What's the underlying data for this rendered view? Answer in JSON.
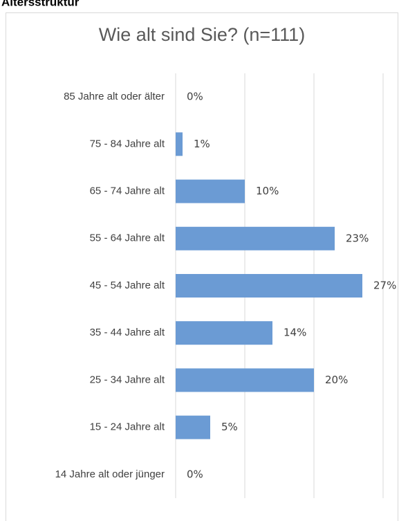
{
  "heading": "Altersstruktur",
  "chart_data": {
    "type": "bar",
    "orientation": "horizontal",
    "title": "Wie alt sind Sie? (n=111)",
    "categories": [
      "85 Jahre alt oder älter",
      "75 - 84 Jahre alt",
      "65 - 74 Jahre alt",
      "55 - 64 Jahre alt",
      "45 - 54 Jahre alt",
      "35 - 44 Jahre alt",
      "25 - 34 Jahre alt",
      "15 - 24 Jahre alt",
      "14 Jahre alt oder jünger"
    ],
    "values": [
      0,
      1,
      10,
      23,
      27,
      14,
      20,
      5,
      0
    ],
    "value_labels": [
      "0%",
      "1%",
      "10%",
      "23%",
      "27%",
      "14%",
      "20%",
      "5%",
      "0%"
    ],
    "color": "#6b9bd4",
    "xlim": [
      0,
      30
    ],
    "xticks": [
      0,
      10,
      20,
      30
    ],
    "grid": true
  }
}
